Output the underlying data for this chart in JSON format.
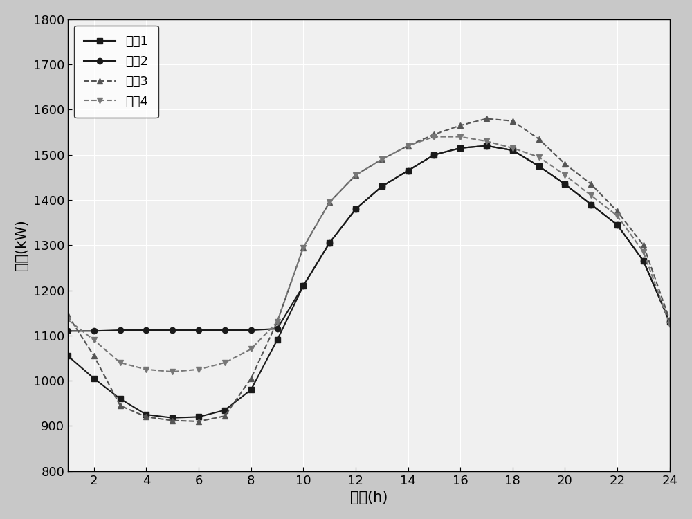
{
  "title": "",
  "xlabel": "时间(h)",
  "ylabel": "负载(kW)",
  "xlim": [
    1,
    24
  ],
  "ylim": [
    800,
    1800
  ],
  "xticks": [
    2,
    4,
    6,
    8,
    10,
    12,
    14,
    16,
    18,
    20,
    22,
    24
  ],
  "yticks": [
    800,
    900,
    1000,
    1100,
    1200,
    1300,
    1400,
    1500,
    1600,
    1700,
    1800
  ],
  "hours": [
    1,
    2,
    3,
    4,
    5,
    6,
    7,
    8,
    9,
    10,
    11,
    12,
    13,
    14,
    15,
    16,
    17,
    18,
    19,
    20,
    21,
    22,
    23,
    24
  ],
  "curve1": [
    1055,
    1005,
    960,
    925,
    918,
    920,
    935,
    980,
    1090,
    1210,
    1305,
    1380,
    1430,
    1465,
    1500,
    1515,
    1520,
    1510,
    1475,
    1435,
    1390,
    1345,
    1265,
    1130
  ],
  "curve2": [
    1110,
    1110,
    1112,
    1112,
    1112,
    1112,
    1112,
    1112,
    1115,
    1210,
    1305,
    1380,
    1430,
    1465,
    1500,
    1515,
    1520,
    1510,
    1475,
    1435,
    1390,
    1345,
    1265,
    1130
  ],
  "curve3": [
    1145,
    1055,
    945,
    920,
    912,
    910,
    922,
    1005,
    1130,
    1295,
    1395,
    1455,
    1490,
    1520,
    1545,
    1565,
    1580,
    1575,
    1535,
    1480,
    1435,
    1375,
    1300,
    1135
  ],
  "curve4": [
    1135,
    1090,
    1040,
    1025,
    1020,
    1025,
    1040,
    1070,
    1130,
    1295,
    1395,
    1455,
    1490,
    1520,
    1540,
    1540,
    1530,
    1515,
    1495,
    1455,
    1410,
    1365,
    1285,
    1125
  ],
  "curve1_color": "#1a1a1a",
  "curve2_color": "#1a1a1a",
  "curve3_color": "#555555",
  "curve4_color": "#777777",
  "curve1_style": "-",
  "curve2_style": "-",
  "curve3_style": "--",
  "curve4_style": "--",
  "curve1_marker": "s",
  "curve2_marker": "o",
  "curve3_marker": "^",
  "curve4_marker": "v",
  "curve1_label": "曲线1",
  "curve2_label": "曲线2",
  "curve3_label": "曲线3",
  "curve4_label": "曲线4",
  "legend_loc": "upper left",
  "background_color": "#c8c8c8",
  "plot_bg_color": "#f0f0f0",
  "grid_color": "#ffffff",
  "fontsize_axis_label": 15,
  "fontsize_tick": 13,
  "fontsize_legend": 13,
  "markersize": 6,
  "linewidth": 1.5
}
